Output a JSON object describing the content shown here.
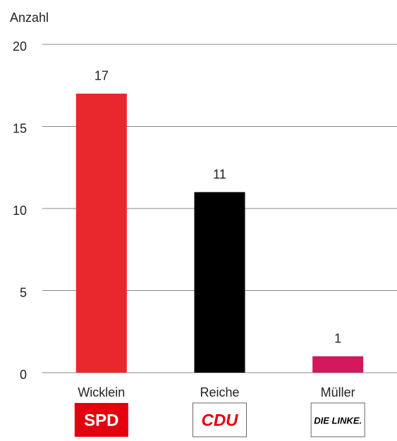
{
  "chart_data": {
    "type": "bar",
    "ylabel": "Anzahl",
    "categories": [
      "Wicklein",
      "Reiche",
      "Müller"
    ],
    "logos": [
      "SPD",
      "CDU",
      "DIE LINKE."
    ],
    "values": [
      17,
      11,
      1
    ],
    "colors": [
      "#e8282c",
      "#000000",
      "#d3175c"
    ],
    "ylim": [
      0,
      20
    ],
    "yticks": [
      0,
      5,
      10,
      15,
      20
    ],
    "grid": true
  }
}
